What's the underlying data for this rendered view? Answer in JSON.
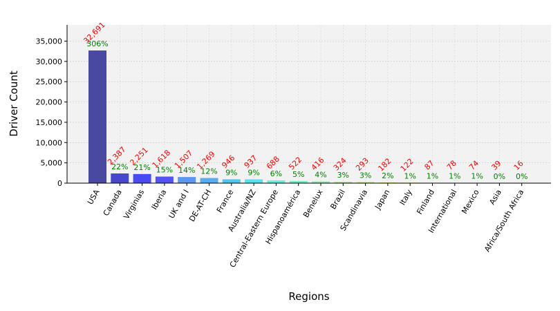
{
  "chart_data": {
    "type": "bar",
    "xlabel": "Regions",
    "ylabel": "Driver Count",
    "ylim": [
      0,
      39000
    ],
    "y_ticks": [
      0,
      5000,
      10000,
      15000,
      20000,
      25000,
      30000,
      35000
    ],
    "y_tick_labels": [
      "0",
      "5,000",
      "10,000",
      "15,000",
      "20,000",
      "25,000",
      "30,000",
      "35,000"
    ],
    "grid": true,
    "colors": {
      "plot_background": "#f2f2f2",
      "grid": "#c8c8c8",
      "value_label": "#ff0000",
      "percent_label": "#008000",
      "bars": [
        "#3b3b9b",
        "#3838c8",
        "#3c3cf5",
        "#4444f5",
        "#4d8ff0",
        "#4ca6ef",
        "#42c2ef",
        "#47e0f0",
        "#55f0e0",
        "#66f0c0",
        "#7ef0a0",
        "#a0f080",
        "#c0f060",
        "#d8ee4e",
        "#e8e040",
        "#f0c030",
        "#f09a20",
        "#f06c10",
        "#e84a0a",
        "#e02a06"
      ]
    },
    "categories": [
      "USA",
      "Canada",
      "Virginias",
      "Iberia",
      "UK and I",
      "DE-AT-CH",
      "France",
      "Australia/NZ",
      "Central-Eastern Europe",
      "Hispanoamérica",
      "Benelux",
      "Brazil",
      "Scandinavia",
      "Japan",
      "Italy",
      "Finland",
      "International",
      "Mexico",
      "Asia",
      "Africa/South Africa"
    ],
    "values": [
      32691,
      2387,
      2251,
      1618,
      1507,
      1269,
      946,
      937,
      688,
      522,
      416,
      324,
      293,
      182,
      122,
      87,
      78,
      74,
      39,
      16
    ],
    "value_labels": [
      "32,691",
      "2,387",
      "2,251",
      "1,618",
      "1,507",
      "1,269",
      "946",
      "937",
      "688",
      "522",
      "416",
      "324",
      "293",
      "182",
      "122",
      "87",
      "78",
      "74",
      "39",
      "16"
    ],
    "percent_labels": [
      "306%",
      "22%",
      "21%",
      "15%",
      "14%",
      "12%",
      "9%",
      "9%",
      "6%",
      "5%",
      "4%",
      "3%",
      "3%",
      "2%",
      "1%",
      "1%",
      "1%",
      "1%",
      "0%",
      "0%"
    ]
  }
}
